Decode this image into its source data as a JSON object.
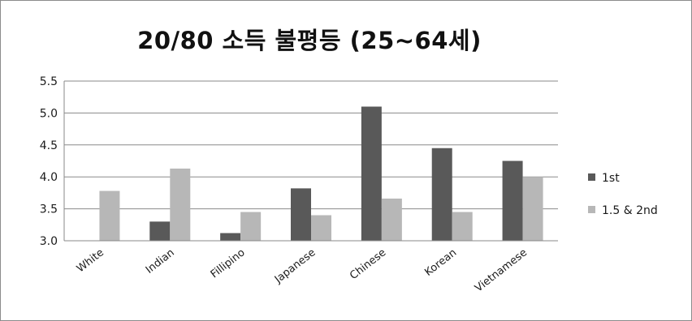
{
  "chart_data": {
    "type": "bar",
    "title": "20/80 소득 불평등 (25~64세)",
    "xlabel": "",
    "ylabel": "",
    "categories": [
      "White",
      "Indian",
      "Fillipino",
      "Japanese",
      "Chinese",
      "Korean",
      "Vietnamese"
    ],
    "series": [
      {
        "name": "1st",
        "values": [
          null,
          3.3,
          3.12,
          3.82,
          5.1,
          4.45,
          4.25
        ],
        "color": "#595959"
      },
      {
        "name": "1.5 & 2nd",
        "values": [
          3.78,
          4.13,
          3.45,
          3.4,
          3.66,
          3.45,
          4.0
        ],
        "color": "#b7b7b7"
      }
    ],
    "ylim": [
      3.0,
      5.5
    ],
    "yticks": [
      "3.0",
      "3.5",
      "4.0",
      "4.5",
      "5.0",
      "5.5"
    ],
    "grid": true,
    "legend_position": "right"
  }
}
